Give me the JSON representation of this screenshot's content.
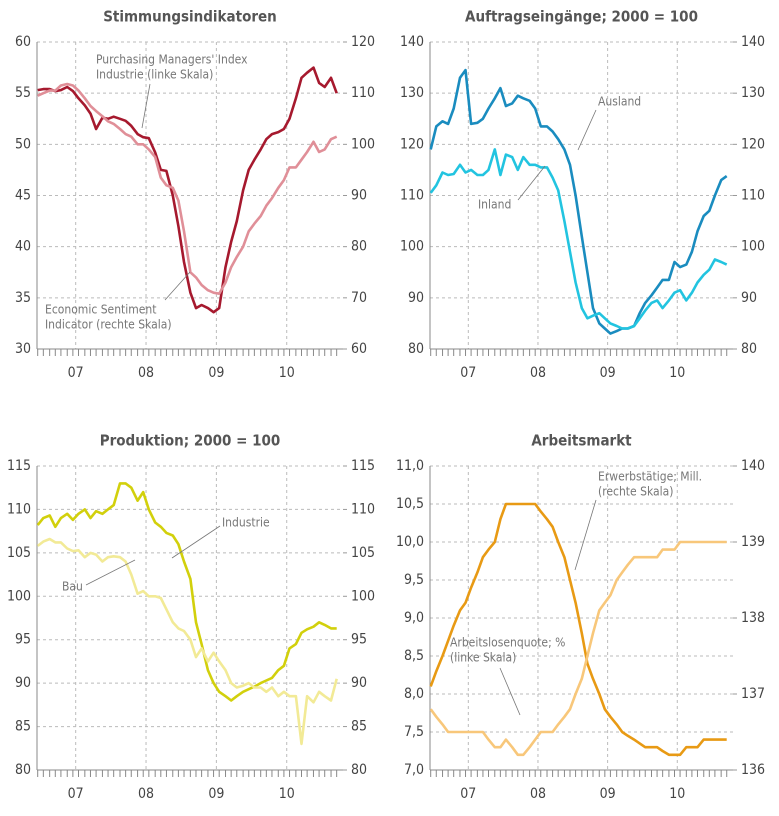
{
  "chart_data": [
    {
      "type": "line",
      "title": "Stimmungsindikatoren",
      "x": [
        2006.96,
        2007.04,
        2007.13,
        2007.21,
        2007.29,
        2007.38,
        2007.46,
        2007.54,
        2007.63,
        2007.71,
        2007.79,
        2007.88,
        2007.96,
        2008.04,
        2008.13,
        2008.21,
        2008.29,
        2008.38,
        2008.46,
        2008.54,
        2008.63,
        2008.71,
        2008.79,
        2008.88,
        2008.96,
        2009.04,
        2009.13,
        2009.21,
        2009.29,
        2009.38,
        2009.46,
        2009.54,
        2009.63,
        2009.71,
        2009.79,
        2009.88,
        2009.96,
        2010.04,
        2010.13,
        2010.21,
        2010.29,
        2010.38,
        2010.46,
        2010.54,
        2010.63,
        2010.71,
        2010.79,
        2010.88,
        2010.96,
        2011.04,
        2011.13,
        2011.21
      ],
      "xlim": [
        2006.95,
        2011.3
      ],
      "xticks": [
        {
          "value": 2007.5,
          "label": "07"
        },
        {
          "value": 2008.5,
          "label": "08"
        },
        {
          "value": 2009.5,
          "label": "09"
        },
        {
          "value": 2010.5,
          "label": "10"
        }
      ],
      "ylim": [
        30,
        60
      ],
      "yticks": [
        30,
        35,
        40,
        45,
        50,
        55,
        60
      ],
      "y2lim": [
        60,
        120
      ],
      "y2ticks": [
        60,
        70,
        80,
        90,
        100,
        110,
        120
      ],
      "grid": true,
      "series": [
        {
          "name": "Purchasing Managers' Index Industrie (linke Skala)",
          "color": "#a6192e",
          "values": [
            55.3,
            55.4,
            55.4,
            55.2,
            55.3,
            55.6,
            55.2,
            54.5,
            53.8,
            53.0,
            51.5,
            52.6,
            52.5,
            52.7,
            52.5,
            52.3,
            51.8,
            51.0,
            50.7,
            50.6,
            49.2,
            47.5,
            47.4,
            45.0,
            42.0,
            38.5,
            35.5,
            34.0,
            34.3,
            34.0,
            33.6,
            34.0,
            38.0,
            40.5,
            42.5,
            45.5,
            47.5,
            48.5,
            49.5,
            50.5,
            51.0,
            51.2,
            51.5,
            52.5,
            54.5,
            56.5,
            57.0,
            57.5,
            56.0,
            55.6,
            56.5,
            55.0
          ]
        },
        {
          "name": "Economic Sentiment Indicator (rechte Skala)",
          "color": "#e08f98",
          "axis": "y2",
          "values": [
            109.5,
            110,
            110.5,
            110.5,
            111.5,
            111.8,
            111.5,
            110.5,
            109,
            107.5,
            106.5,
            105.5,
            104.5,
            104,
            103,
            102,
            101.5,
            100,
            100,
            99,
            97.5,
            93.5,
            92,
            91.5,
            89,
            83,
            75,
            74,
            72.5,
            71.5,
            71,
            70.8,
            73,
            76,
            78,
            80,
            83,
            84.5,
            86,
            88,
            89.5,
            91.5,
            93,
            95.5,
            95.5,
            97,
            98.5,
            100.5,
            98.5,
            99,
            101,
            101.5
          ]
        }
      ],
      "annotations": [
        [
          "Purchasing Managers' Index",
          "Industrie (linke Skala)"
        ],
        [
          "Economic Sentiment",
          "Indicator (rechte Skala)"
        ]
      ]
    },
    {
      "type": "line",
      "title": "Auftragseingänge; 2000 = 100",
      "x": [
        2006.96,
        2007.04,
        2007.13,
        2007.21,
        2007.29,
        2007.38,
        2007.46,
        2007.54,
        2007.63,
        2007.71,
        2007.79,
        2007.88,
        2007.96,
        2008.04,
        2008.13,
        2008.21,
        2008.29,
        2008.38,
        2008.46,
        2008.54,
        2008.63,
        2008.71,
        2008.79,
        2008.88,
        2008.96,
        2009.04,
        2009.13,
        2009.21,
        2009.29,
        2009.38,
        2009.46,
        2009.54,
        2009.63,
        2009.71,
        2009.79,
        2009.88,
        2009.96,
        2010.04,
        2010.13,
        2010.21,
        2010.29,
        2010.38,
        2010.46,
        2010.54,
        2010.63,
        2010.71,
        2010.79,
        2010.88,
        2010.96,
        2011.04,
        2011.13,
        2011.21
      ],
      "xlim": [
        2006.95,
        2011.3
      ],
      "xticks": [
        {
          "value": 2007.5,
          "label": "07"
        },
        {
          "value": 2008.5,
          "label": "08"
        },
        {
          "value": 2009.5,
          "label": "09"
        },
        {
          "value": 2010.5,
          "label": "10"
        }
      ],
      "ylim": [
        80,
        140
      ],
      "yticks": [
        80,
        90,
        100,
        110,
        120,
        130,
        140
      ],
      "y2lim": [
        80,
        140
      ],
      "y2ticks": [
        80,
        90,
        100,
        110,
        120,
        130,
        140
      ],
      "grid": true,
      "series": [
        {
          "name": "Ausland",
          "color": "#1a8cbf",
          "values": [
            119,
            123.5,
            124.5,
            124,
            127,
            133,
            134.5,
            124,
            124.2,
            125,
            127,
            129,
            131,
            127.5,
            128,
            129.5,
            129,
            128.5,
            127,
            123.5,
            123.5,
            122.5,
            121,
            119,
            116,
            110,
            102,
            95,
            88,
            85,
            84,
            83,
            83.5,
            84,
            84,
            84.5,
            87,
            89,
            90.5,
            92,
            93.5,
            93.5,
            97,
            96,
            96.5,
            99,
            103,
            106,
            107,
            110,
            113,
            113.8
          ]
        },
        {
          "name": "Inland",
          "color": "#22c4e0",
          "values": [
            110.5,
            112,
            114.5,
            114,
            114.2,
            116,
            114.5,
            115,
            114,
            114,
            115,
            119,
            114,
            118,
            117.5,
            115,
            117.5,
            116,
            116,
            115.5,
            115.5,
            113.5,
            111,
            105,
            99,
            93,
            88,
            86,
            86.5,
            87,
            86,
            85,
            84.5,
            84,
            84,
            84.5,
            86,
            87.5,
            89,
            89.5,
            88,
            89.5,
            91,
            91.5,
            89.5,
            91,
            93,
            94.5,
            95.5,
            97.5,
            97,
            96.5
          ]
        }
      ],
      "annotations": [
        [
          "Ausland"
        ],
        [
          "Inland"
        ]
      ]
    },
    {
      "type": "line",
      "title": "Produktion; 2000 = 100",
      "x": [
        2006.96,
        2007.04,
        2007.13,
        2007.21,
        2007.29,
        2007.38,
        2007.46,
        2007.54,
        2007.63,
        2007.71,
        2007.79,
        2007.88,
        2007.96,
        2008.04,
        2008.13,
        2008.21,
        2008.29,
        2008.38,
        2008.46,
        2008.54,
        2008.63,
        2008.71,
        2008.79,
        2008.88,
        2008.96,
        2009.04,
        2009.13,
        2009.21,
        2009.29,
        2009.38,
        2009.46,
        2009.54,
        2009.63,
        2009.71,
        2009.79,
        2009.88,
        2009.96,
        2010.04,
        2010.13,
        2010.21,
        2010.29,
        2010.38,
        2010.46,
        2010.54,
        2010.63,
        2010.71,
        2010.79,
        2010.88,
        2010.96,
        2011.04,
        2011.13,
        2011.21
      ],
      "xlim": [
        2006.95,
        2011.3
      ],
      "xticks": [
        {
          "value": 2007.5,
          "label": "07"
        },
        {
          "value": 2008.5,
          "label": "08"
        },
        {
          "value": 2009.5,
          "label": "09"
        },
        {
          "value": 2010.5,
          "label": "10"
        }
      ],
      "ylim": [
        80,
        115
      ],
      "yticks": [
        80,
        85,
        90,
        95,
        100,
        105,
        110,
        115
      ],
      "y2lim": [
        80,
        115
      ],
      "y2ticks": [
        80,
        85,
        90,
        95,
        100,
        105,
        110,
        115
      ],
      "grid": true,
      "series": [
        {
          "name": "Industrie",
          "color": "#d2d00c",
          "values": [
            108.2,
            109,
            109.3,
            108,
            109,
            109.5,
            108.8,
            109.5,
            110,
            109,
            109.8,
            109.5,
            110,
            110.5,
            113,
            113,
            112.5,
            111,
            112,
            110,
            108.5,
            108,
            107.3,
            107,
            106,
            104,
            102,
            97,
            94.5,
            91.5,
            90,
            89,
            88.5,
            88,
            88.5,
            89,
            89.3,
            89.6,
            90,
            90.3,
            90.6,
            91.5,
            92,
            94,
            94.5,
            95.8,
            96.2,
            96.5,
            97,
            96.7,
            96.3,
            96.3
          ]
        },
        {
          "name": "Bau",
          "color": "#f2ea96",
          "values": [
            105.8,
            106.3,
            106.6,
            106.2,
            106.2,
            105.5,
            105.2,
            105.3,
            104.5,
            105,
            104.8,
            104,
            104.5,
            104.6,
            104.5,
            104,
            102.5,
            100.3,
            100.6,
            100,
            100,
            99.8,
            98.5,
            97,
            96.3,
            96,
            95,
            93,
            94,
            92.5,
            93.5,
            92.5,
            91.5,
            90,
            89.5,
            89.7,
            90,
            89.5,
            89.5,
            89,
            89.5,
            88.5,
            89,
            88.5,
            88.5,
            83,
            88.5,
            87.8,
            89,
            88.5,
            88,
            90.5
          ]
        }
      ],
      "annotations": [
        [
          "Industrie"
        ],
        [
          "Bau"
        ]
      ]
    },
    {
      "type": "line",
      "title": "Arbeitsmarkt",
      "x": [
        2006.96,
        2007.04,
        2007.13,
        2007.21,
        2007.29,
        2007.38,
        2007.46,
        2007.54,
        2007.63,
        2007.71,
        2007.79,
        2007.88,
        2007.96,
        2008.04,
        2008.13,
        2008.21,
        2008.29,
        2008.38,
        2008.46,
        2008.54,
        2008.63,
        2008.71,
        2008.79,
        2008.88,
        2008.96,
        2009.04,
        2009.13,
        2009.21,
        2009.29,
        2009.38,
        2009.46,
        2009.54,
        2009.63,
        2009.71,
        2009.79,
        2009.88,
        2009.96,
        2010.04,
        2010.13,
        2010.21,
        2010.29,
        2010.38,
        2010.46,
        2010.54,
        2010.63,
        2010.71,
        2010.79,
        2010.88,
        2010.96,
        2011.04,
        2011.13,
        2011.21
      ],
      "xlim": [
        2006.95,
        2011.3
      ],
      "xticks": [
        {
          "value": 2007.5,
          "label": "07"
        },
        {
          "value": 2008.5,
          "label": "08"
        },
        {
          "value": 2009.5,
          "label": "09"
        },
        {
          "value": 2010.5,
          "label": "10"
        }
      ],
      "ylim": [
        7,
        11
      ],
      "yticks": [
        {
          "value": 7,
          "label": "7,0"
        },
        {
          "value": 7.5,
          "label": "7,5"
        },
        {
          "value": 8,
          "label": "8,0"
        },
        {
          "value": 8.5,
          "label": "8,5"
        },
        {
          "value": 9,
          "label": "9,0"
        },
        {
          "value": 9.5,
          "label": "9,5"
        },
        {
          "value": 10,
          "label": "10,0"
        },
        {
          "value": 10.5,
          "label": "10,5"
        },
        {
          "value": 11,
          "label": "11,0"
        }
      ],
      "y2lim": [
        136,
        140
      ],
      "y2ticks": [
        136,
        137,
        138,
        139,
        140
      ],
      "grid": true,
      "series": [
        {
          "name": "Erwerbstätige; Mill. (rechte Skala)",
          "color": "#e89a14",
          "axis": "y2",
          "values": [
            137.1,
            137.3,
            137.5,
            137.7,
            137.9,
            138.1,
            138.2,
            138.4,
            138.6,
            138.8,
            138.9,
            139.0,
            139.3,
            139.5,
            139.5,
            139.5,
            139.5,
            139.5,
            139.5,
            139.4,
            139.3,
            139.2,
            139.0,
            138.8,
            138.5,
            138.2,
            137.8,
            137.4,
            137.2,
            137.0,
            136.8,
            136.7,
            136.6,
            136.5,
            136.45,
            136.4,
            136.35,
            136.3,
            136.3,
            136.3,
            136.25,
            136.2,
            136.2,
            136.2,
            136.3,
            136.3,
            136.3,
            136.4,
            136.4,
            136.4,
            136.4,
            136.4
          ]
        },
        {
          "name": "Arbeitslosenquote; % (linke Skala)",
          "color": "#f8c77a",
          "values": [
            7.8,
            7.7,
            7.6,
            7.5,
            7.5,
            7.5,
            7.5,
            7.5,
            7.5,
            7.5,
            7.4,
            7.3,
            7.3,
            7.4,
            7.3,
            7.2,
            7.2,
            7.3,
            7.4,
            7.5,
            7.5,
            7.5,
            7.6,
            7.7,
            7.8,
            8.0,
            8.2,
            8.5,
            8.8,
            9.1,
            9.2,
            9.3,
            9.5,
            9.6,
            9.7,
            9.8,
            9.8,
            9.8,
            9.8,
            9.8,
            9.9,
            9.9,
            9.9,
            10.0,
            10.0,
            10.0,
            10.0,
            10.0,
            10.0,
            10.0,
            10.0,
            10.0
          ]
        }
      ],
      "annotations": [
        [
          "Erwerbstätige; Mill.",
          "(rechte Skala)"
        ],
        [
          "Arbeitslosenquote; %",
          "(linke Skala)"
        ]
      ]
    }
  ]
}
